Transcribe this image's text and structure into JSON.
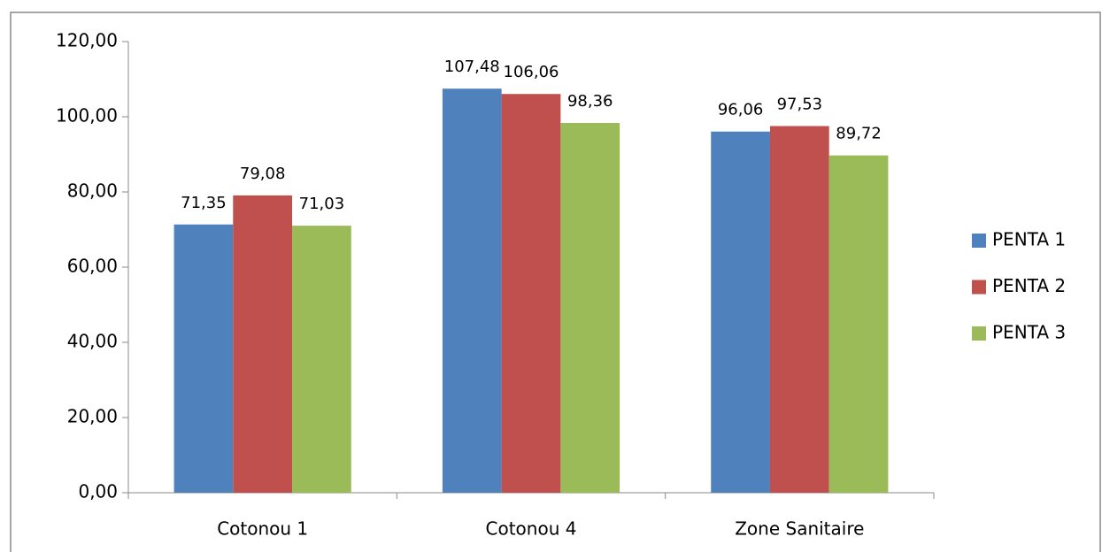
{
  "chart_data": {
    "type": "bar",
    "categories": [
      "Cotonou 1",
      "Cotonou 4",
      "Zone Sanitaire"
    ],
    "series": [
      {
        "name": "PENTA 1",
        "color": "#4f81bd",
        "values": [
          71.35,
          107.48,
          96.06
        ],
        "value_labels": [
          "71,35",
          "107,48",
          "96,06"
        ]
      },
      {
        "name": "PENTA 2",
        "color": "#c0504d",
        "values": [
          79.08,
          106.06,
          97.53
        ],
        "value_labels": [
          "79,08",
          "106,06",
          "97,53"
        ]
      },
      {
        "name": "PENTA 3",
        "color": "#9bbb59",
        "values": [
          71.03,
          98.36,
          89.72
        ],
        "value_labels": [
          "71,03",
          "98,36",
          "89,72"
        ]
      }
    ],
    "ylim": [
      0,
      120
    ],
    "yticks": [
      {
        "value": 0,
        "label": "0,00"
      },
      {
        "value": 20,
        "label": "20,00"
      },
      {
        "value": 40,
        "label": "40,00"
      },
      {
        "value": 60,
        "label": "60,00"
      },
      {
        "value": 80,
        "label": "80,00"
      },
      {
        "value": 100,
        "label": "100,00"
      },
      {
        "value": 120,
        "label": "120,00"
      }
    ],
    "grid": false,
    "legend": "right"
  }
}
